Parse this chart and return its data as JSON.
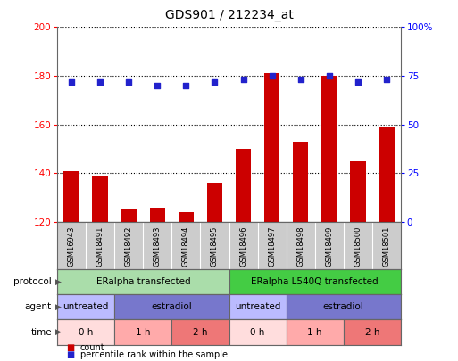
{
  "title": "GDS901 / 212234_at",
  "samples": [
    "GSM16943",
    "GSM18491",
    "GSM18492",
    "GSM18493",
    "GSM18494",
    "GSM18495",
    "GSM18496",
    "GSM18497",
    "GSM18498",
    "GSM18499",
    "GSM18500",
    "GSM18501"
  ],
  "counts": [
    141,
    139,
    125,
    126,
    124,
    136,
    150,
    181,
    153,
    180,
    145,
    159
  ],
  "percentile": [
    72,
    72,
    72,
    70,
    70,
    72,
    73,
    75,
    73,
    75,
    72,
    73
  ],
  "ylim_left": [
    120,
    200
  ],
  "ylim_right": [
    0,
    100
  ],
  "yticks_left": [
    120,
    140,
    160,
    180,
    200
  ],
  "yticks_right": [
    0,
    25,
    50,
    75,
    100
  ],
  "bar_color": "#cc0000",
  "dot_color": "#2222cc",
  "protocol_groups": [
    {
      "label": "ERalpha transfected",
      "start": 0,
      "end": 6,
      "color": "#aaddaa"
    },
    {
      "label": "ERalpha L540Q transfected",
      "start": 6,
      "end": 12,
      "color": "#44cc44"
    }
  ],
  "agent_groups": [
    {
      "label": "untreated",
      "start": 0,
      "end": 2,
      "color": "#bbbbff"
    },
    {
      "label": "estradiol",
      "start": 2,
      "end": 6,
      "color": "#7777cc"
    },
    {
      "label": "untreated",
      "start": 6,
      "end": 8,
      "color": "#bbbbff"
    },
    {
      "label": "estradiol",
      "start": 8,
      "end": 12,
      "color": "#7777cc"
    }
  ],
  "time_groups": [
    {
      "label": "0 h",
      "start": 0,
      "end": 2,
      "color": "#ffdddd"
    },
    {
      "label": "1 h",
      "start": 2,
      "end": 4,
      "color": "#ffaaaa"
    },
    {
      "label": "2 h",
      "start": 4,
      "end": 6,
      "color": "#ee7777"
    },
    {
      "label": "0 h",
      "start": 6,
      "end": 8,
      "color": "#ffdddd"
    },
    {
      "label": "1 h",
      "start": 8,
      "end": 10,
      "color": "#ffaaaa"
    },
    {
      "label": "2 h",
      "start": 10,
      "end": 12,
      "color": "#ee7777"
    }
  ],
  "legend_count_color": "#cc0000",
  "legend_pct_color": "#2222cc",
  "bg_color": "#ffffff",
  "sample_bg": "#cccccc",
  "row_label_color": "#555555"
}
